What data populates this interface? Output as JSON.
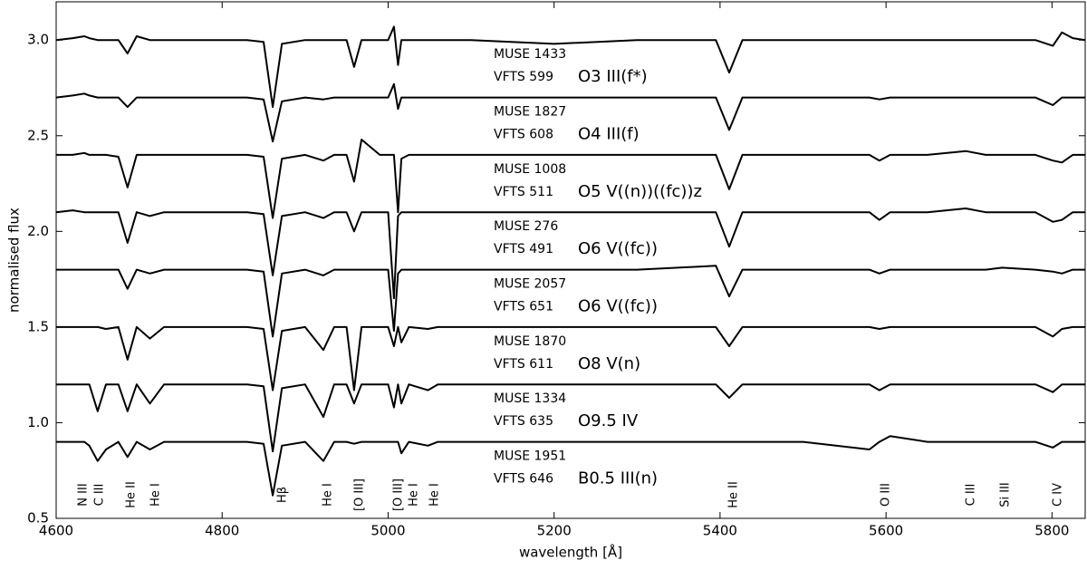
{
  "chart_data": {
    "type": "line",
    "xlabel": "wavelength [Å]",
    "ylabel": "normalised flux",
    "xlim": [
      4600,
      5840
    ],
    "ylim": [
      0.5,
      3.2
    ],
    "xticks": [
      4600,
      4800,
      5000,
      5200,
      5400,
      5600,
      5800
    ],
    "yticks": [
      0.5,
      {
        "value": 1,
        "label": "1.0"
      },
      1.5,
      {
        "value": 2,
        "label": "2.0"
      },
      2.5,
      {
        "value": 3,
        "label": "3.0"
      }
    ],
    "grid": false,
    "x": [
      4600,
      4620,
      4634,
      4640,
      4650,
      4660,
      4675,
      4686,
      4697,
      4713,
      4730,
      4780,
      4830,
      4850,
      4861,
      4872,
      4900,
      4922,
      4935,
      4950,
      4959,
      4968,
      4990,
      5000,
      5007,
      5012,
      5016,
      5025,
      5048,
      5060,
      5100,
      5200,
      5300,
      5395,
      5411,
      5427,
      5500,
      5580,
      5592,
      5605,
      5650,
      5696,
      5720,
      5740,
      5780,
      5801,
      5812,
      5825,
      5840
    ],
    "series": [
      {
        "name": "O3 III(f*)",
        "muse_id": "MUSE 1433",
        "vfts_id": "VFTS 599",
        "color": "#000000",
        "values": [
          3.0,
          3.01,
          3.02,
          3.01,
          3.0,
          3.0,
          3.0,
          2.93,
          3.02,
          3.0,
          3.0,
          3.0,
          3.0,
          2.99,
          2.65,
          2.98,
          3.0,
          3.0,
          3.0,
          3.0,
          2.86,
          3.0,
          3.0,
          3.0,
          3.07,
          2.87,
          3.0,
          3.0,
          3.0,
          3.0,
          3.0,
          2.98,
          3.0,
          3.0,
          2.83,
          3.0,
          3.0,
          3.0,
          3.0,
          3.0,
          3.0,
          3.0,
          3.0,
          3.0,
          3.0,
          2.97,
          3.04,
          3.01,
          3.0
        ]
      },
      {
        "name": "O4 III(f)",
        "muse_id": "MUSE 1827",
        "vfts_id": "VFTS 608",
        "color": "#000000",
        "values": [
          2.7,
          2.71,
          2.72,
          2.71,
          2.7,
          2.7,
          2.7,
          2.65,
          2.7,
          2.7,
          2.7,
          2.7,
          2.7,
          2.69,
          2.47,
          2.68,
          2.7,
          2.69,
          2.7,
          2.7,
          2.7,
          2.7,
          2.7,
          2.7,
          2.77,
          2.64,
          2.7,
          2.7,
          2.7,
          2.7,
          2.7,
          2.7,
          2.7,
          2.7,
          2.53,
          2.7,
          2.7,
          2.7,
          2.69,
          2.7,
          2.7,
          2.7,
          2.7,
          2.7,
          2.7,
          2.66,
          2.7,
          2.7,
          2.7
        ]
      },
      {
        "name": "O5 V((n))((fc))z",
        "muse_id": "MUSE 1008",
        "vfts_id": "VFTS 511",
        "color": "#000000",
        "values": [
          2.4,
          2.4,
          2.41,
          2.4,
          2.4,
          2.4,
          2.39,
          2.23,
          2.4,
          2.4,
          2.4,
          2.4,
          2.4,
          2.39,
          2.07,
          2.38,
          2.4,
          2.37,
          2.4,
          2.4,
          2.26,
          2.48,
          2.4,
          2.4,
          2.4,
          2.1,
          2.38,
          2.4,
          2.4,
          2.4,
          2.4,
          2.4,
          2.4,
          2.4,
          2.22,
          2.4,
          2.4,
          2.4,
          2.37,
          2.4,
          2.4,
          2.42,
          2.4,
          2.4,
          2.4,
          2.37,
          2.36,
          2.4,
          2.4
        ]
      },
      {
        "name": "O6 V((fc))",
        "muse_id": "MUSE 276",
        "vfts_id": "VFTS 491",
        "color": "#000000",
        "values": [
          2.1,
          2.11,
          2.1,
          2.1,
          2.1,
          2.1,
          2.1,
          1.94,
          2.1,
          2.08,
          2.1,
          2.1,
          2.1,
          2.09,
          1.77,
          2.08,
          2.1,
          2.07,
          2.1,
          2.1,
          2.0,
          2.1,
          2.1,
          2.1,
          1.65,
          2.08,
          2.1,
          2.1,
          2.1,
          2.1,
          2.1,
          2.1,
          2.1,
          2.1,
          1.92,
          2.1,
          2.1,
          2.1,
          2.06,
          2.1,
          2.1,
          2.12,
          2.1,
          2.1,
          2.1,
          2.05,
          2.06,
          2.1,
          2.1
        ]
      },
      {
        "name": "O6 V((fc))",
        "muse_id": "MUSE 2057",
        "vfts_id": "VFTS 651",
        "color": "#000000",
        "values": [
          1.8,
          1.8,
          1.8,
          1.8,
          1.8,
          1.8,
          1.8,
          1.7,
          1.8,
          1.78,
          1.8,
          1.8,
          1.8,
          1.79,
          1.45,
          1.78,
          1.8,
          1.77,
          1.8,
          1.8,
          1.8,
          1.8,
          1.8,
          1.8,
          1.48,
          1.78,
          1.8,
          1.8,
          1.8,
          1.8,
          1.8,
          1.8,
          1.8,
          1.82,
          1.66,
          1.8,
          1.8,
          1.8,
          1.78,
          1.8,
          1.8,
          1.8,
          1.8,
          1.81,
          1.8,
          1.79,
          1.78,
          1.8,
          1.8
        ]
      },
      {
        "name": "O8 V(n)",
        "muse_id": "MUSE 1870",
        "vfts_id": "VFTS 611",
        "color": "#000000",
        "values": [
          1.5,
          1.5,
          1.5,
          1.5,
          1.5,
          1.49,
          1.5,
          1.33,
          1.5,
          1.44,
          1.5,
          1.5,
          1.5,
          1.49,
          1.17,
          1.48,
          1.5,
          1.38,
          1.5,
          1.5,
          1.17,
          1.5,
          1.5,
          1.5,
          1.4,
          1.5,
          1.42,
          1.5,
          1.49,
          1.5,
          1.5,
          1.5,
          1.5,
          1.5,
          1.4,
          1.5,
          1.5,
          1.5,
          1.49,
          1.5,
          1.5,
          1.5,
          1.5,
          1.5,
          1.5,
          1.45,
          1.49,
          1.5,
          1.5
        ]
      },
      {
        "name": "O9.5 IV",
        "muse_id": "MUSE 1334",
        "vfts_id": "VFTS 635",
        "color": "#000000",
        "values": [
          1.2,
          1.2,
          1.2,
          1.2,
          1.06,
          1.2,
          1.2,
          1.06,
          1.2,
          1.1,
          1.2,
          1.2,
          1.2,
          1.19,
          0.85,
          1.18,
          1.2,
          1.03,
          1.2,
          1.2,
          1.1,
          1.2,
          1.2,
          1.2,
          1.08,
          1.2,
          1.1,
          1.2,
          1.17,
          1.2,
          1.2,
          1.2,
          1.2,
          1.2,
          1.13,
          1.2,
          1.2,
          1.2,
          1.17,
          1.2,
          1.2,
          1.2,
          1.2,
          1.2,
          1.2,
          1.16,
          1.2,
          1.2,
          1.2
        ]
      },
      {
        "name": "B0.5 III(n)",
        "muse_id": "MUSE 1951",
        "vfts_id": "VFTS 646",
        "color": "#000000",
        "values": [
          0.9,
          0.9,
          0.9,
          0.88,
          0.8,
          0.86,
          0.9,
          0.82,
          0.9,
          0.86,
          0.9,
          0.9,
          0.9,
          0.89,
          0.62,
          0.88,
          0.9,
          0.8,
          0.9,
          0.9,
          0.89,
          0.9,
          0.9,
          0.9,
          0.9,
          0.9,
          0.84,
          0.9,
          0.88,
          0.9,
          0.9,
          0.9,
          0.9,
          0.9,
          0.9,
          0.9,
          0.9,
          0.86,
          0.9,
          0.93,
          0.9,
          0.9,
          0.9,
          0.9,
          0.9,
          0.87,
          0.9,
          0.9,
          0.9
        ]
      }
    ],
    "line_labels": [
      "N III",
      "C III",
      "He II",
      "He I",
      "Hβ",
      "He I",
      "[O III]",
      "[O III]",
      "He I",
      "He I",
      "He II",
      "O III",
      "C III",
      "Si III",
      "C IV"
    ]
  }
}
